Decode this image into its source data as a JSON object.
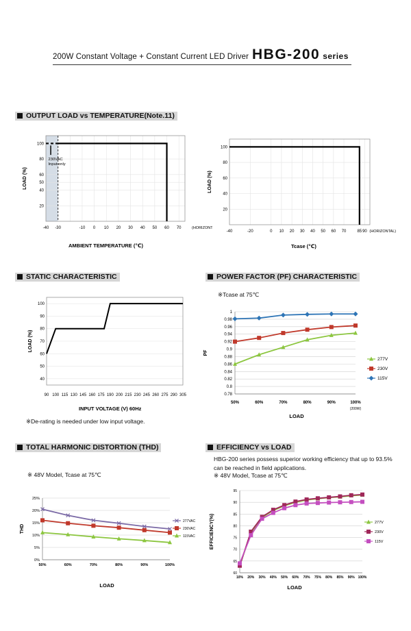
{
  "header": {
    "subtitle": "200W Constant Voltage + Constant Current LED Driver",
    "model": "HBG-200",
    "series_suffix": "series"
  },
  "sections": {
    "output_load": "OUTPUT LOAD vs TEMPERATURE(Note.11)",
    "static": "STATIC CHARACTERISTIC",
    "pf": "POWER FACTOR (PF) CHARACTERISTIC",
    "thd": "TOTAL HARMONIC DISTORTION (THD)",
    "efficiency": "EFFICIENCY vs LOAD"
  },
  "notes": {
    "derating": "※De-rating is needed under low input voltage.",
    "pf_tcase": "※Tcase at 75℃",
    "thd_cond": "※ 48V Model, Tcase at 75℃",
    "eff_desc": "HBG-200 series possess superior working efficiency that up to 93.5% can be reached in field applications.",
    "eff_cond": "※ 48V Model, Tcase at 75℃"
  },
  "chart_data": [
    {
      "id": "ambient",
      "type": "line",
      "xlabel": "AMBIENT TEMPERATURE (℃)",
      "ylabel": "LOAD (%)",
      "x_ticks": [
        "-40",
        "-30",
        "-10",
        "0",
        "10",
        "20",
        "30",
        "40",
        "50",
        "60",
        "70"
      ],
      "x_axis_note": "(HORIZONTAL)",
      "y_ticks": [
        "100",
        "80",
        "60",
        "50",
        "40",
        "20"
      ],
      "xlim": [
        -40,
        75
      ],
      "ylim": [
        0,
        110
      ],
      "annotation": "230VAC Input only",
      "series": [
        {
          "x": [
            -30,
            60,
            60
          ],
          "y": [
            100,
            100,
            0
          ]
        }
      ],
      "shaded_x": [
        -40,
        -30
      ]
    },
    {
      "id": "tcase",
      "type": "line",
      "xlabel": "Tcase (℃)",
      "ylabel": "LOAD (%)",
      "x_ticks": [
        "-40",
        "-20",
        "0",
        "10",
        "20",
        "30",
        "40",
        "50",
        "60",
        "70",
        "85",
        "90"
      ],
      "x_axis_note": "(HORIZONTAL)",
      "y_ticks": [
        "100",
        "80",
        "60",
        "40",
        "20"
      ],
      "xlim": [
        -40,
        95
      ],
      "ylim": [
        0,
        110
      ],
      "series": [
        {
          "x": [
            -40,
            85,
            85
          ],
          "y": [
            100,
            100,
            0
          ]
        }
      ]
    },
    {
      "id": "static",
      "type": "line",
      "xlabel": "INPUT VOLTAGE (V) 60Hz",
      "ylabel": "LOAD (%)",
      "x_ticks": [
        "90",
        "100",
        "115",
        "130",
        "145",
        "160",
        "175",
        "190",
        "200",
        "215",
        "230",
        "245",
        "260",
        "275",
        "290",
        "305"
      ],
      "y_ticks": [
        "100",
        "90",
        "80",
        "70",
        "60",
        "50",
        "40"
      ],
      "ylim": [
        35,
        105
      ],
      "series": [
        {
          "x": [
            90,
            100,
            180,
            190,
            305
          ],
          "y": [
            60,
            80,
            80,
            100,
            100
          ]
        }
      ]
    },
    {
      "id": "pf",
      "type": "line",
      "xlabel": "LOAD",
      "ylabel": "PF",
      "categories": [
        "50%",
        "60%",
        "70%",
        "80%",
        "90%",
        "100%"
      ],
      "x_sub_note": "(200W)",
      "y_ticks": [
        "1",
        "0.98",
        "0.96",
        "0.94",
        "0.92",
        "0.9",
        "0.88",
        "0.86",
        "0.84",
        "0.82",
        "0.8",
        "0.78"
      ],
      "ylim": [
        0.78,
        1
      ],
      "legend_position": "right",
      "series": [
        {
          "name": "277V",
          "color": "#8cc63f",
          "marker": "triangle",
          "values": [
            0.86,
            0.885,
            0.905,
            0.925,
            0.937,
            0.943
          ]
        },
        {
          "name": "230V",
          "color": "#c0392b",
          "marker": "square",
          "values": [
            0.92,
            0.93,
            0.943,
            0.952,
            0.959,
            0.963
          ]
        },
        {
          "name": "115V",
          "color": "#2e75b6",
          "marker": "diamond",
          "values": [
            0.981,
            0.983,
            0.991,
            0.993,
            0.994,
            0.994
          ]
        }
      ]
    },
    {
      "id": "thd",
      "type": "line",
      "xlabel": "LOAD",
      "ylabel": "THD",
      "categories": [
        "50%",
        "60%",
        "70%",
        "80%",
        "90%",
        "100%"
      ],
      "y_ticks": [
        "25%",
        "20%",
        "15%",
        "10%",
        "5%",
        "0%"
      ],
      "ylim": [
        0,
        25
      ],
      "legend_position": "right",
      "series": [
        {
          "name": "277VAC",
          "color": "#7b6aa6",
          "marker": "cross",
          "values": [
            20.5,
            18,
            16,
            14.8,
            13.5,
            12.5
          ]
        },
        {
          "name": "230VAC",
          "color": "#c0392b",
          "marker": "square",
          "values": [
            16,
            14.8,
            13.8,
            13,
            12,
            11
          ]
        },
        {
          "name": "115VAC",
          "color": "#8cc63f",
          "marker": "triangle",
          "values": [
            11,
            10.2,
            9.3,
            8.5,
            7.8,
            7
          ]
        }
      ]
    },
    {
      "id": "efficiency",
      "type": "line",
      "xlabel": "LOAD",
      "ylabel": "EFFICIENCY(%)",
      "categories": [
        "10%",
        "20%",
        "30%",
        "40%",
        "50%",
        "60%",
        "70%",
        "75%",
        "80%",
        "85%",
        "90%",
        "100%"
      ],
      "y_ticks": [
        "95",
        "90",
        "85",
        "80",
        "75",
        "70",
        "65",
        "60"
      ],
      "ylim": [
        60,
        95
      ],
      "legend_position": "right",
      "series": [
        {
          "name": "277V",
          "color": "#8cc63f",
          "marker": "triangle",
          "values": [
            63,
            77,
            83.5,
            86.5,
            88.5,
            90,
            91,
            91.5,
            92,
            92.3,
            92.8,
            93.1
          ]
        },
        {
          "name": "230V",
          "color": "#a0285a",
          "marker": "square",
          "values": [
            63,
            77.5,
            83.8,
            86.8,
            88.8,
            90.3,
            91.2,
            91.7,
            92.1,
            92.5,
            93,
            93.3
          ]
        },
        {
          "name": "115V",
          "color": "#c44fc0",
          "marker": "square",
          "values": [
            64,
            76,
            83,
            85.5,
            87.5,
            88.8,
            89.5,
            89.7,
            89.9,
            90,
            90.1,
            90.2
          ]
        }
      ]
    }
  ]
}
